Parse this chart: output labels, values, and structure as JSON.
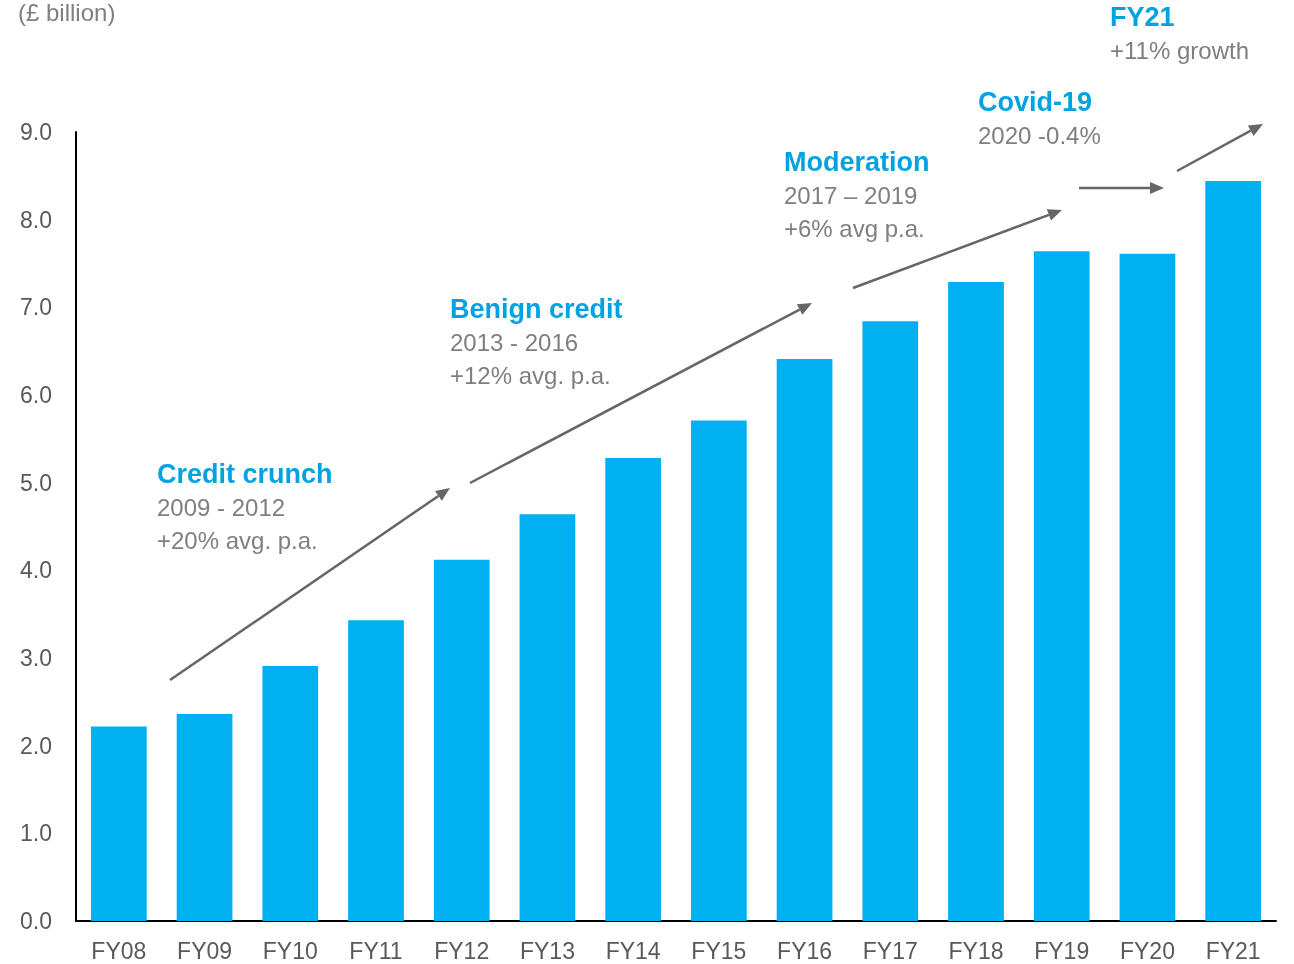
{
  "chart_data": {
    "type": "bar",
    "ylabel": "(£ billion)",
    "categories": [
      "FY08",
      "FY09",
      "FY10",
      "FY11",
      "FY12",
      "FY13",
      "FY14",
      "FY15",
      "FY16",
      "FY17",
      "FY18",
      "FY19",
      "FY20",
      "FY21"
    ],
    "values": [
      2.22,
      2.36,
      2.91,
      3.43,
      4.12,
      4.64,
      5.28,
      5.71,
      6.41,
      6.84,
      7.29,
      7.64,
      7.61,
      8.44
    ],
    "color": "#00b0f0",
    "ylim": [
      0,
      9
    ],
    "yticks": [
      {
        "value": 0,
        "label": "0.0"
      },
      {
        "value": 1,
        "label": "1.0"
      },
      {
        "value": 2,
        "label": "2.0"
      },
      {
        "value": 3,
        "label": "3.0"
      },
      {
        "value": 4,
        "label": "4.0"
      },
      {
        "value": 5,
        "label": "5.0"
      },
      {
        "value": 6,
        "label": "6.0"
      },
      {
        "value": 7,
        "label": "7.0"
      },
      {
        "value": 8,
        "label": "8.0"
      },
      {
        "value": 9,
        "label": "9.0"
      }
    ],
    "grid": false,
    "annotations": [
      "Credit crunch\n2009 - 2012\n+20% avg. p.a.",
      "Benign credit\n2013 - 2016\n+12% avg. p.a.",
      "Moderation\n2017 – 2019\n+6% avg p.a.",
      "Covid-19\n2020 -0.4%",
      "FY21\n+11% growth"
    ]
  }
}
